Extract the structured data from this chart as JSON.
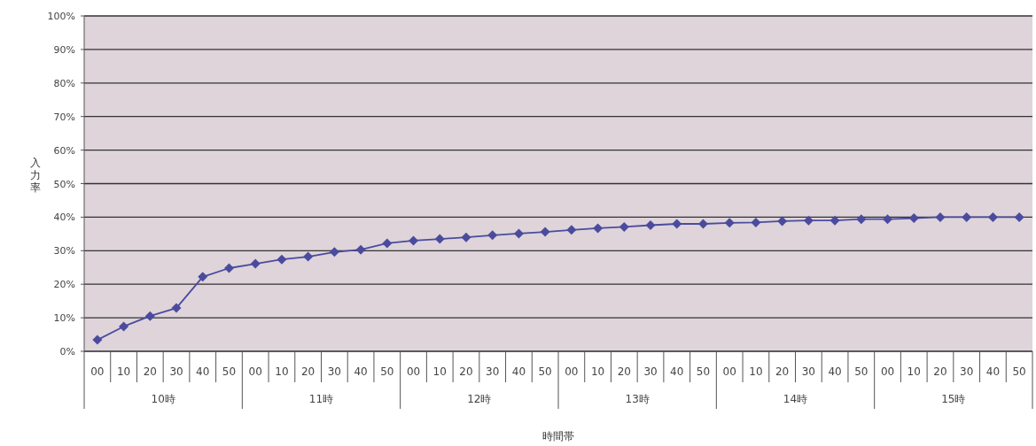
{
  "chart_data": {
    "type": "line",
    "xlabel": "時間帯",
    "ylabel": "入力率",
    "categories": [
      "00",
      "10",
      "20",
      "30",
      "40",
      "50",
      "00",
      "10",
      "20",
      "30",
      "40",
      "50",
      "00",
      "10",
      "20",
      "30",
      "40",
      "50",
      "00",
      "10",
      "20",
      "30",
      "40",
      "50",
      "00",
      "10",
      "20",
      "30",
      "40",
      "50",
      "00",
      "10",
      "20",
      "30",
      "40",
      "50"
    ],
    "values": [
      3.4,
      7.4,
      10.5,
      12.9,
      22.2,
      24.8,
      26.1,
      27.4,
      28.2,
      29.6,
      30.3,
      32.2,
      33.0,
      33.5,
      34.0,
      34.6,
      35.1,
      35.6,
      36.2,
      36.7,
      37.1,
      37.6,
      38.0,
      38.0,
      38.3,
      38.4,
      38.8,
      39.0,
      39.0,
      39.4,
      39.4,
      39.7,
      40.0,
      40.0,
      40.0,
      40.0
    ],
    "color": "#4b4b9e",
    "marker": "diamond",
    "line_style": "solid",
    "grid": "y",
    "ylim": [
      0,
      100
    ],
    "yticks": [
      {
        "value": 0,
        "label": "0%"
      },
      {
        "value": 10,
        "label": "10%"
      },
      {
        "value": 20,
        "label": "20%"
      },
      {
        "value": 30,
        "label": "30%"
      },
      {
        "value": 40,
        "label": "40%"
      },
      {
        "value": 50,
        "label": "50%"
      },
      {
        "value": 60,
        "label": "60%"
      },
      {
        "value": 70,
        "label": "70%"
      },
      {
        "value": 80,
        "label": "80%"
      },
      {
        "value": 90,
        "label": "90%"
      },
      {
        "value": 100,
        "label": "100%"
      }
    ],
    "annotations": [
      "10時",
      "11時",
      "12時",
      "13時",
      "14時",
      "15時"
    ]
  }
}
